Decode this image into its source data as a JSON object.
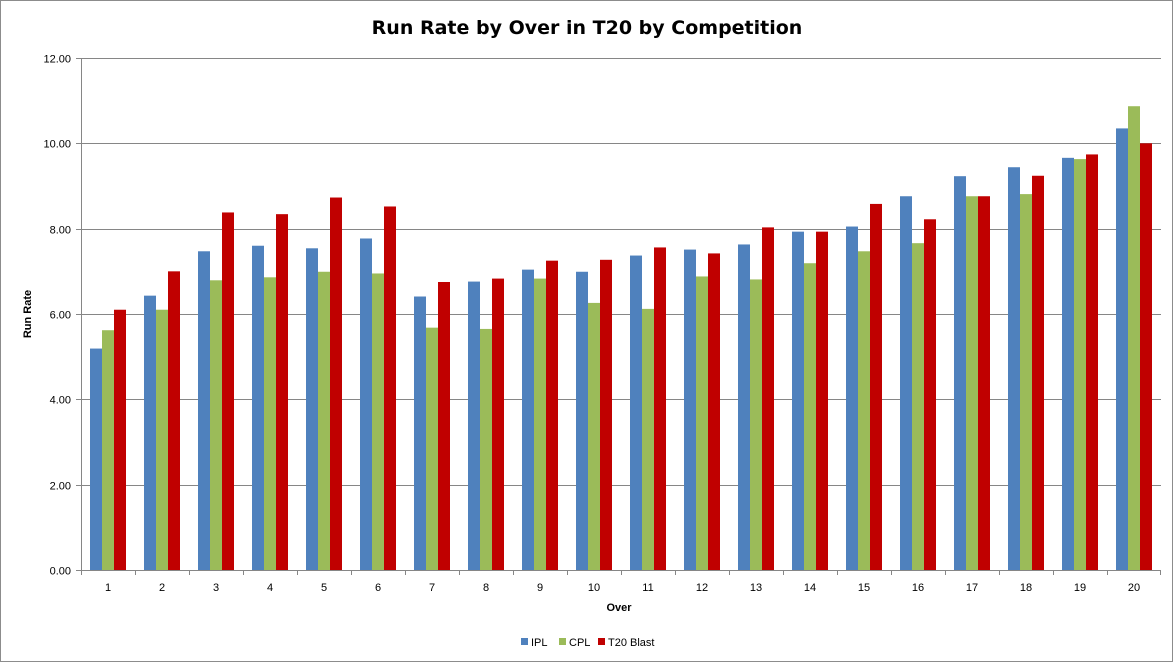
{
  "chart_data": {
    "type": "bar",
    "title": "Run Rate by Over in T20 by Competition",
    "xlabel": "Over",
    "ylabel": "Run Rate",
    "categories": [
      "1",
      "2",
      "3",
      "4",
      "5",
      "6",
      "7",
      "8",
      "9",
      "10",
      "11",
      "12",
      "13",
      "14",
      "15",
      "16",
      "17",
      "18",
      "19",
      "20"
    ],
    "ylim": [
      0,
      12
    ],
    "yticks": [
      "0.00",
      "2.00",
      "4.00",
      "6.00",
      "8.00",
      "10.00",
      "12.00"
    ],
    "ytick_values": [
      0,
      2,
      4,
      6,
      8,
      10,
      12
    ],
    "grid": "horizontal",
    "legend_position": "bottom",
    "series": [
      {
        "name": "IPL",
        "color": "#4f81bd",
        "values": [
          5.19,
          6.43,
          7.47,
          7.6,
          7.54,
          7.77,
          6.41,
          6.76,
          7.04,
          6.99,
          7.37,
          7.51,
          7.63,
          7.93,
          8.05,
          8.76,
          9.23,
          9.44,
          9.66,
          10.35
        ]
      },
      {
        "name": "CPL",
        "color": "#9bbb59",
        "values": [
          5.62,
          6.1,
          6.79,
          6.86,
          6.99,
          6.95,
          5.68,
          5.65,
          6.83,
          6.26,
          6.12,
          6.88,
          6.81,
          7.19,
          7.47,
          7.66,
          8.76,
          8.81,
          9.63,
          10.87
        ]
      },
      {
        "name": "T20 Blast",
        "color": "#c00000",
        "values": [
          6.1,
          7.0,
          8.38,
          8.34,
          8.73,
          8.52,
          6.75,
          6.83,
          7.25,
          7.27,
          7.56,
          7.42,
          8.03,
          7.93,
          8.58,
          8.22,
          8.76,
          9.24,
          9.74,
          10.0
        ]
      }
    ]
  }
}
